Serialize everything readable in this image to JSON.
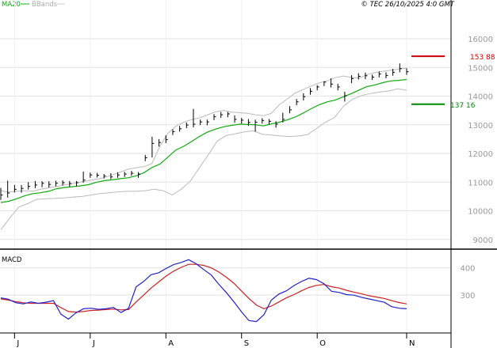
{
  "header": {
    "ma_label": "MA20",
    "bbands_label": "BBands",
    "copyright": "© TEC 26/10/2025 4:0 GMT"
  },
  "price_markers": [
    {
      "label": "153 88",
      "value": 153.88,
      "color": "#cc0000"
    },
    {
      "label": "137 16",
      "value": 137.16,
      "color": "#008800"
    }
  ],
  "macd_label": "MACD",
  "colors": {
    "ma": "#11aa11",
    "bbands": "#bbbbbb",
    "candles": "#000000",
    "macd": "#2222cc",
    "signal": "#cc2222",
    "grid": "#e2e2e2",
    "axis": "#000000",
    "resistance": "#cc0000",
    "support": "#008800"
  },
  "chart_data": [
    {
      "type": "line",
      "name": "price",
      "ylim": [
        88,
        168
      ],
      "yticks": [
        90,
        100,
        110,
        120,
        130,
        140,
        150,
        160
      ],
      "ytick_labels": [
        "9000",
        "10000",
        "11000",
        "12000",
        "13000",
        "14000",
        "15000",
        "16000"
      ],
      "grid": true,
      "x_month_labels": [
        "J",
        "J",
        "A",
        "S",
        "O",
        "N"
      ],
      "x_month_index": [
        2,
        13,
        24,
        35,
        46,
        59
      ],
      "x_count": 60,
      "close": [
        105.5,
        106.2,
        107.5,
        107.8,
        108.5,
        109,
        109.6,
        109.2,
        109.6,
        109.8,
        109.5,
        109.8,
        110.7,
        112.5,
        112.4,
        112.1,
        111.8,
        112.5,
        112.8,
        113.1,
        112.8,
        118.5,
        123.5,
        123.8,
        124.8,
        127.6,
        128.6,
        129.9,
        130.2,
        131,
        131,
        132.8,
        133.5,
        133.8,
        131.9,
        131.6,
        130.8,
        130.9,
        131.5,
        131.2,
        130.2,
        131.9,
        135.2,
        138,
        139.8,
        141.7,
        143.2,
        144.9,
        144.2,
        143.2,
        140.1,
        146.1,
        146.9,
        147.1,
        146.6,
        147.7,
        147.2,
        148.3,
        149.6,
        148.5
      ],
      "high": [
        108,
        110.5,
        109,
        109,
        110,
        110.4,
        110.3,
        110.3,
        110.5,
        110.6,
        110.4,
        110.4,
        113.7,
        113.3,
        113.2,
        112.8,
        113.1,
        113.4,
        113.6,
        113.9,
        113.5,
        119.5,
        125.8,
        125,
        126.3,
        128.4,
        129.6,
        130.8,
        135.5,
        131.8,
        131.8,
        133.7,
        134.5,
        134.5,
        133.3,
        132.4,
        132,
        131.8,
        132.3,
        132,
        131.2,
        134.2,
        136.5,
        139,
        141,
        142.8,
        143.8,
        145.2,
        146.2,
        144.3,
        141.5,
        147.3,
        148,
        148.2,
        147.5,
        148.6,
        148.3,
        149.5,
        151.4,
        149.7
      ],
      "low": [
        103.8,
        104.6,
        106.4,
        106.3,
        107.4,
        107.9,
        108.2,
        108.1,
        108.5,
        108.8,
        108.4,
        108.5,
        109.8,
        111.5,
        111.6,
        111.3,
        111,
        111.5,
        111.8,
        112.2,
        111.5,
        117.3,
        118.6,
        122.4,
        123.6,
        126.4,
        127.6,
        128.8,
        129.1,
        129.9,
        129.8,
        131.6,
        132.4,
        132.6,
        130.7,
        130.4,
        129.6,
        127.6,
        130.4,
        130.1,
        129,
        130.8,
        134,
        136.8,
        138.5,
        140.5,
        142,
        143.5,
        143,
        142,
        138.1,
        144.5,
        145.8,
        145.9,
        145.6,
        146.5,
        146.2,
        147.1,
        148.3,
        147.4
      ],
      "ma20": [
        102.9,
        103.3,
        104.2,
        105.2,
        106,
        106.3,
        106.8,
        107.7,
        108.1,
        108.4,
        108.7,
        109.1,
        109.9,
        110.5,
        110.8,
        111.2,
        111.5,
        112.2,
        113.3,
        115.1,
        116.3,
        118.7,
        121.2,
        122.5,
        124.2,
        126,
        127.5,
        128.5,
        129.3,
        129.8,
        130.2,
        130.1,
        130,
        129.6,
        130.3,
        130.9,
        131.7,
        132.7,
        134.1,
        135.6,
        137,
        138,
        138.6,
        139.7,
        140.8,
        142.1,
        143.3,
        143.9,
        144.7,
        145.3,
        145.5,
        145.8
      ],
      "bb_upper": [
        107,
        106.5,
        106.8,
        107,
        106.8,
        107.5,
        108,
        108.5,
        109,
        109.5,
        110,
        110.5,
        111,
        111.5,
        112.5,
        113.5,
        114.5,
        115,
        115.4,
        116.5,
        122.5,
        127,
        129.5,
        130.9,
        131.8,
        132.4,
        133.5,
        134.5,
        135,
        134.4,
        134.2,
        134,
        133.5,
        133.2,
        134,
        137,
        139,
        141.1,
        142.3,
        143.5,
        144.6,
        145.3,
        146.4,
        147,
        146.6,
        146.2,
        147.5,
        148.2,
        148.6,
        149,
        149.4,
        149.8
      ],
      "bb_lower": [
        93.4,
        97.5,
        101.3,
        102.5,
        104,
        104.2,
        104.3,
        104.5,
        104.8,
        105,
        105.5,
        106,
        106.3,
        106.6,
        106.8,
        106.8,
        107,
        107.5,
        107,
        105.5,
        107.5,
        110.3,
        114.9,
        119.5,
        124.3,
        126.3,
        126.8,
        127.5,
        127.9,
        126.7,
        126.4,
        126.1,
        125.9,
        126.1,
        126.5,
        128.7,
        130.9,
        132.5,
        136.5,
        138.9,
        140.2,
        140.9,
        141.4,
        141.8,
        142.5,
        142.1
      ]
    },
    {
      "type": "line",
      "name": "MACD",
      "ylim": [
        170,
        460
      ],
      "yticks": [
        300,
        400
      ],
      "ytick_labels": [
        "300",
        "400"
      ],
      "macd": [
        290,
        285,
        272,
        268,
        275,
        270,
        274,
        280,
        230,
        212,
        235,
        250,
        252,
        248,
        250,
        255,
        236,
        252,
        330,
        350,
        375,
        382,
        398,
        412,
        420,
        430,
        415,
        394,
        374,
        340,
        310,
        276,
        240,
        207,
        203,
        228,
        282,
        304,
        316,
        335,
        350,
        362,
        357,
        342,
        314,
        310,
        302,
        300,
        292,
        286,
        280,
        274,
        258,
        252,
        250
      ],
      "signal": [
        286,
        282,
        276,
        272,
        270,
        270,
        270,
        270,
        254,
        240,
        238,
        240,
        244,
        245,
        247,
        249,
        246,
        247,
        275,
        300,
        326,
        348,
        370,
        388,
        402,
        413,
        413,
        409,
        400,
        385,
        366,
        344,
        316,
        288,
        264,
        250,
        260,
        275,
        290,
        302,
        316,
        328,
        336,
        339,
        331,
        326,
        318,
        311,
        305,
        298,
        293,
        288,
        280,
        273,
        268
      ]
    }
  ]
}
